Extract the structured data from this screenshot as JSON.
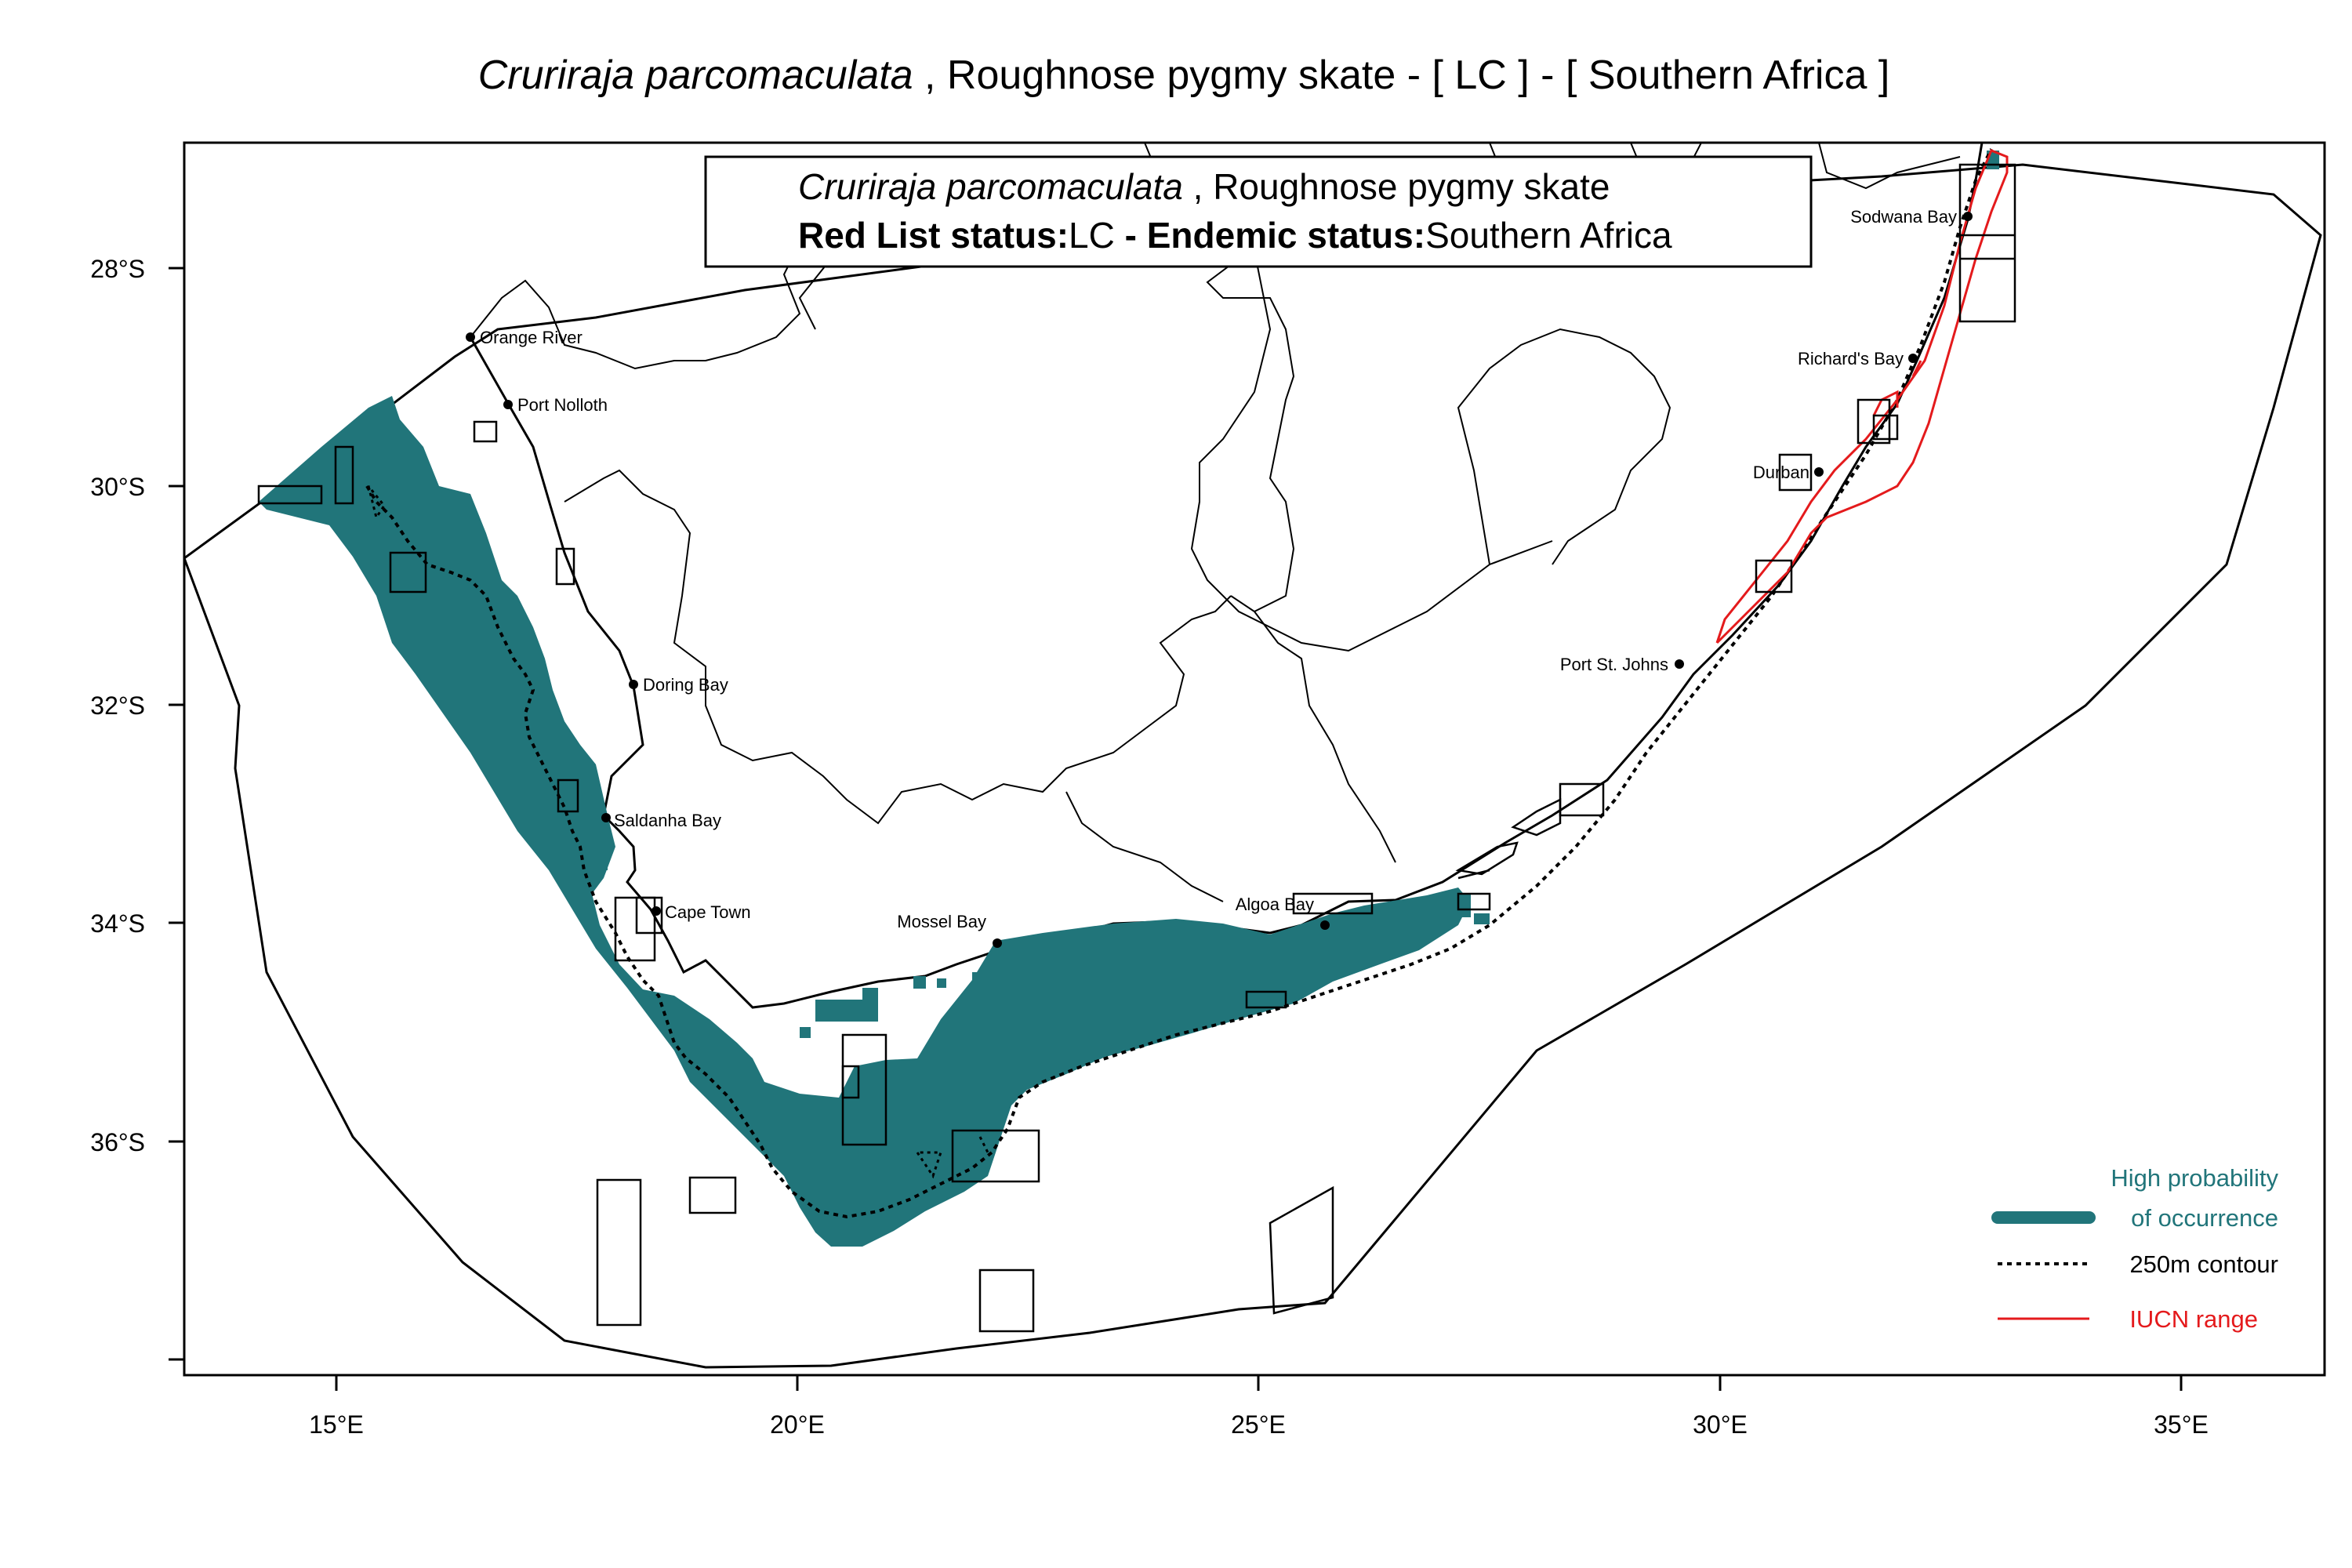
{
  "title": {
    "species": "Cruriraja parcomaculata",
    "rest": " , Roughnose pygmy skate  - [ LC ] - [ Southern Africa ]"
  },
  "info_box": {
    "species": "Cruriraja parcomaculata",
    "common": " , Roughnose pygmy skate",
    "red_list_label": "Red List status:",
    "red_list_value": "LC",
    "endemic_label": " - Endemic status:",
    "endemic_value": "Southern Africa"
  },
  "axes": {
    "x_ticks": [
      "15°E",
      "20°E",
      "25°E",
      "30°E",
      "35°E"
    ],
    "y_ticks": [
      "28°S",
      "30°S",
      "32°S",
      "34°S",
      "36°S"
    ]
  },
  "places": [
    {
      "name": "Orange River"
    },
    {
      "name": "Port Nolloth"
    },
    {
      "name": "Doring Bay"
    },
    {
      "name": "Saldanha Bay"
    },
    {
      "name": "Cape Town"
    },
    {
      "name": "Mossel Bay"
    },
    {
      "name": "Algoa Bay"
    },
    {
      "name": "Port St. Johns"
    },
    {
      "name": "Durban"
    },
    {
      "name": "Richard's Bay"
    },
    {
      "name": "Sodwana Bay"
    }
  ],
  "legend": {
    "occurrence_line1": "High probability",
    "occurrence_line2": "of occurrence",
    "contour": "250m contour",
    "iucn": "IUCN range"
  },
  "colors": {
    "occurrence": "#21757a",
    "iucn": "#e41a1c",
    "outline": "#000000"
  }
}
